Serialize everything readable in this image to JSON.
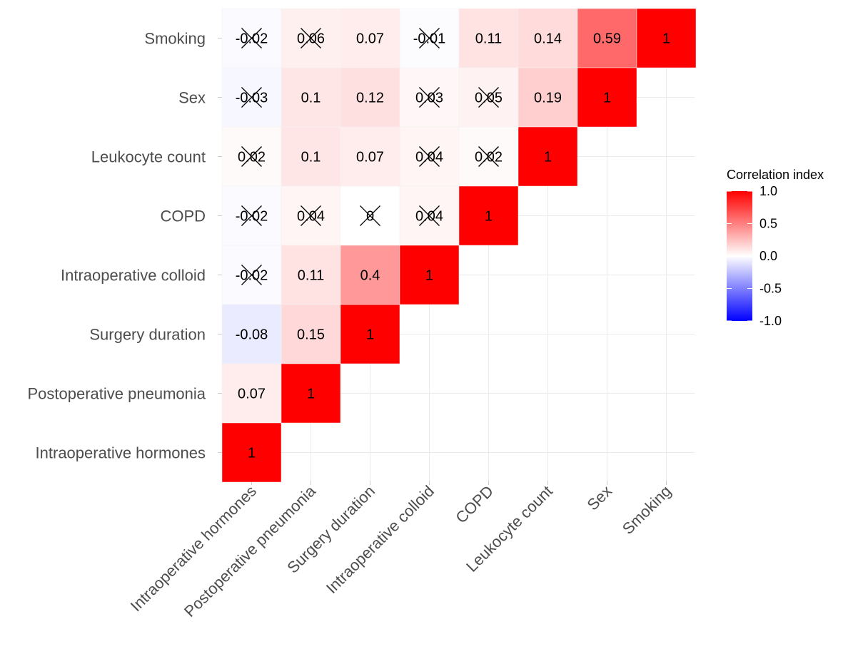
{
  "chart_data": {
    "type": "heatmap",
    "subtype": "lower-triangle correlation matrix",
    "variables_x": [
      "Intraoperative hormones",
      "Postoperative pneumonia",
      "Surgery duration",
      "Intraoperative colloid",
      "COPD",
      "Leukocyte count",
      "Sex",
      "Smoking"
    ],
    "variables_y": [
      "Smoking",
      "Sex",
      "Leukocyte count",
      "COPD",
      "Intraoperative colloid",
      "Surgery duration",
      "Postoperative pneumonia",
      "Intraoperative hormones"
    ],
    "cells": [
      {
        "row": "Smoking",
        "col": "Intraoperative hormones",
        "value": -0.02,
        "label": "-0.02",
        "crossed": true
      },
      {
        "row": "Smoking",
        "col": "Postoperative pneumonia",
        "value": 0.06,
        "label": "0.06",
        "crossed": true
      },
      {
        "row": "Smoking",
        "col": "Surgery duration",
        "value": 0.07,
        "label": "0.07",
        "crossed": false
      },
      {
        "row": "Smoking",
        "col": "Intraoperative colloid",
        "value": -0.01,
        "label": "-0.01",
        "crossed": true
      },
      {
        "row": "Smoking",
        "col": "COPD",
        "value": 0.11,
        "label": "0.11",
        "crossed": false
      },
      {
        "row": "Smoking",
        "col": "Leukocyte count",
        "value": 0.14,
        "label": "0.14",
        "crossed": false
      },
      {
        "row": "Smoking",
        "col": "Sex",
        "value": 0.59,
        "label": "0.59",
        "crossed": false
      },
      {
        "row": "Smoking",
        "col": "Smoking",
        "value": 1,
        "label": "1",
        "crossed": false
      },
      {
        "row": "Sex",
        "col": "Intraoperative hormones",
        "value": -0.03,
        "label": "-0.03",
        "crossed": true
      },
      {
        "row": "Sex",
        "col": "Postoperative pneumonia",
        "value": 0.1,
        "label": "0.1",
        "crossed": false
      },
      {
        "row": "Sex",
        "col": "Surgery duration",
        "value": 0.12,
        "label": "0.12",
        "crossed": false
      },
      {
        "row": "Sex",
        "col": "Intraoperative colloid",
        "value": 0.03,
        "label": "0.03",
        "crossed": true
      },
      {
        "row": "Sex",
        "col": "COPD",
        "value": 0.05,
        "label": "0.05",
        "crossed": true
      },
      {
        "row": "Sex",
        "col": "Leukocyte count",
        "value": 0.19,
        "label": "0.19",
        "crossed": false
      },
      {
        "row": "Sex",
        "col": "Sex",
        "value": 1,
        "label": "1",
        "crossed": false
      },
      {
        "row": "Leukocyte count",
        "col": "Intraoperative hormones",
        "value": 0.02,
        "label": "0.02",
        "crossed": true
      },
      {
        "row": "Leukocyte count",
        "col": "Postoperative pneumonia",
        "value": 0.1,
        "label": "0.1",
        "crossed": false
      },
      {
        "row": "Leukocyte count",
        "col": "Surgery duration",
        "value": 0.07,
        "label": "0.07",
        "crossed": false
      },
      {
        "row": "Leukocyte count",
        "col": "Intraoperative colloid",
        "value": 0.04,
        "label": "0.04",
        "crossed": true
      },
      {
        "row": "Leukocyte count",
        "col": "COPD",
        "value": 0.02,
        "label": "0.02",
        "crossed": true
      },
      {
        "row": "Leukocyte count",
        "col": "Leukocyte count",
        "value": 1,
        "label": "1",
        "crossed": false
      },
      {
        "row": "COPD",
        "col": "Intraoperative hormones",
        "value": -0.02,
        "label": "-0.02",
        "crossed": true
      },
      {
        "row": "COPD",
        "col": "Postoperative pneumonia",
        "value": 0.04,
        "label": "0.04",
        "crossed": true
      },
      {
        "row": "COPD",
        "col": "Surgery duration",
        "value": 0,
        "label": "0",
        "crossed": true
      },
      {
        "row": "COPD",
        "col": "Intraoperative colloid",
        "value": 0.04,
        "label": "0.04",
        "crossed": true
      },
      {
        "row": "COPD",
        "col": "COPD",
        "value": 1,
        "label": "1",
        "crossed": false
      },
      {
        "row": "Intraoperative colloid",
        "col": "Intraoperative hormones",
        "value": -0.02,
        "label": "-0.02",
        "crossed": true
      },
      {
        "row": "Intraoperative colloid",
        "col": "Postoperative pneumonia",
        "value": 0.11,
        "label": "0.11",
        "crossed": false
      },
      {
        "row": "Intraoperative colloid",
        "col": "Surgery duration",
        "value": 0.4,
        "label": "0.4",
        "crossed": false
      },
      {
        "row": "Intraoperative colloid",
        "col": "Intraoperative colloid",
        "value": 1,
        "label": "1",
        "crossed": false
      },
      {
        "row": "Surgery duration",
        "col": "Intraoperative hormones",
        "value": -0.08,
        "label": "-0.08",
        "crossed": false
      },
      {
        "row": "Surgery duration",
        "col": "Postoperative pneumonia",
        "value": 0.15,
        "label": "0.15",
        "crossed": false
      },
      {
        "row": "Surgery duration",
        "col": "Surgery duration",
        "value": 1,
        "label": "1",
        "crossed": false
      },
      {
        "row": "Postoperative pneumonia",
        "col": "Intraoperative hormones",
        "value": 0.07,
        "label": "0.07",
        "crossed": false
      },
      {
        "row": "Postoperative pneumonia",
        "col": "Postoperative pneumonia",
        "value": 1,
        "label": "1",
        "crossed": false
      },
      {
        "row": "Intraoperative hormones",
        "col": "Intraoperative hormones",
        "value": 1,
        "label": "1",
        "crossed": false
      }
    ],
    "legend": {
      "title": "Correlation index",
      "ticks": [
        {
          "value": 1.0,
          "label": "1.0"
        },
        {
          "value": 0.5,
          "label": "0.5"
        },
        {
          "value": 0.0,
          "label": "0.0"
        },
        {
          "value": -0.5,
          "label": "-0.5"
        },
        {
          "value": -1.0,
          "label": "-1.0"
        }
      ],
      "placement": "right"
    },
    "colors": {
      "low": "#0000ff",
      "mid": "#ffffff",
      "high": "#ff0000",
      "grid": "#ebebeb",
      "axis_text": "#4d4d4d"
    },
    "limits": [
      -1,
      1
    ]
  }
}
